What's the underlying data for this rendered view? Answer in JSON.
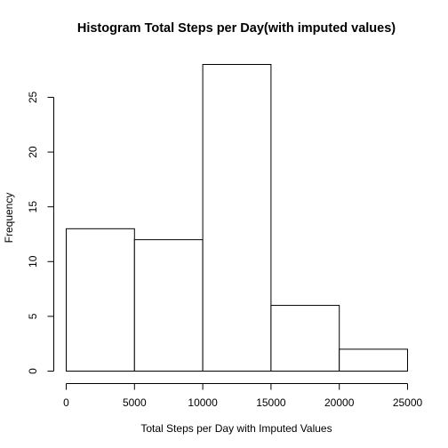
{
  "chart_data": {
    "type": "bar",
    "title": "Histogram Total Steps per Day(with imputed values)",
    "xlabel": "Total Steps per Day with Imputed Values",
    "ylabel": "Frequency",
    "bins": [
      {
        "from": 0,
        "to": 5000,
        "count": 13
      },
      {
        "from": 5000,
        "to": 10000,
        "count": 12
      },
      {
        "from": 10000,
        "to": 15000,
        "count": 28
      },
      {
        "from": 15000,
        "to": 20000,
        "count": 6
      },
      {
        "from": 20000,
        "to": 25000,
        "count": 2
      }
    ],
    "xlim": [
      0,
      25000
    ],
    "ylim": [
      0,
      28
    ],
    "x_ticks": [
      {
        "value": 0,
        "label": "0"
      },
      {
        "value": 5000,
        "label": "5000"
      },
      {
        "value": 10000,
        "label": "10000"
      },
      {
        "value": 15000,
        "label": "15000"
      },
      {
        "value": 20000,
        "label": "20000"
      },
      {
        "value": 25000,
        "label": "25000"
      }
    ],
    "y_ticks": [
      {
        "value": 0,
        "label": "0"
      },
      {
        "value": 5,
        "label": "5"
      },
      {
        "value": 10,
        "label": "10"
      },
      {
        "value": 15,
        "label": "15"
      },
      {
        "value": 20,
        "label": "20"
      },
      {
        "value": 25,
        "label": "25"
      }
    ],
    "grid": false,
    "legend": "none",
    "bar_fill": "#ffffff",
    "bar_stroke": "#000000"
  }
}
